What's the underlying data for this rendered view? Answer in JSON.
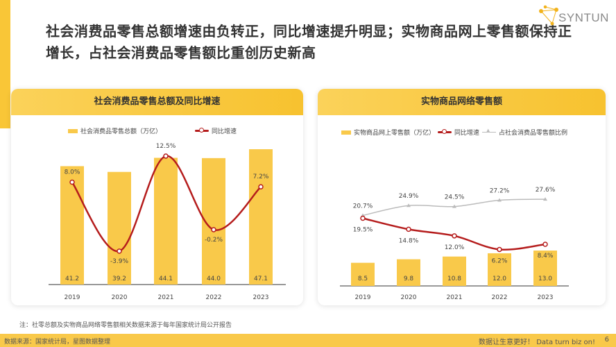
{
  "title": "社会消费品零售总额增速由负转正，同比增速提升明显；实物商品网上零售额保持正增长，占社会消费品零售额比重创历史新高",
  "logo": {
    "text": "SYNTUN",
    "icon": "network-star-logo-icon"
  },
  "colors": {
    "accent": "#f9c94a",
    "line_red": "#b51c1c",
    "line_gray": "#bbbbbb"
  },
  "chart_data": [
    {
      "type": "bar+line",
      "title": "社会消费品零售总额及同比增速",
      "categories": [
        "2019",
        "2020",
        "2021",
        "2022",
        "2023"
      ],
      "series": [
        {
          "name": "社会消费品零售总额（万亿）",
          "type": "bar",
          "values": [
            41.2,
            39.2,
            44.1,
            44.0,
            47.1
          ],
          "labels": [
            "41.2",
            "39.2",
            "44.1",
            "44.0",
            "47.1"
          ]
        },
        {
          "name": "同比增速",
          "type": "line",
          "values": [
            8.0,
            -3.9,
            12.5,
            -0.2,
            7.2
          ],
          "labels": [
            "8.0%",
            "-3.9%",
            "12.5%",
            "-0.2%",
            "7.2%"
          ],
          "smooth": true
        }
      ],
      "legend": "top"
    },
    {
      "type": "bar+line",
      "title": "实物商品网络零售额",
      "categories": [
        "2019",
        "2020",
        "2021",
        "2022",
        "2023"
      ],
      "series": [
        {
          "name": "实物商品网上零售额（万亿）",
          "type": "bar",
          "values": [
            8.5,
            9.8,
            10.8,
            12.0,
            13.0
          ],
          "labels": [
            "8.5",
            "9.8",
            "10.8",
            "12.0",
            "13.0"
          ]
        },
        {
          "name": "同比增速",
          "type": "line",
          "values": [
            19.5,
            14.8,
            12.0,
            6.2,
            8.4
          ],
          "labels": [
            "19.5%",
            "14.8%",
            "12.0%",
            "6.2%",
            "8.4%"
          ]
        },
        {
          "name": "占社会消费品零售额比例",
          "type": "line",
          "values": [
            20.7,
            24.9,
            24.5,
            27.2,
            27.6
          ],
          "labels": [
            "20.7%",
            "24.9%",
            "24.5%",
            "27.2%",
            "27.6%"
          ]
        }
      ],
      "legend": "top"
    }
  ],
  "note": "注：社零总额及实物商品网络零售额相关数据来源于每年国家统计局公开报告",
  "footer": {
    "source": "数据来源：国家统计局，星图数据整理",
    "slogan": "数据让生意更好！ Data turn biz on!",
    "page": "6"
  }
}
